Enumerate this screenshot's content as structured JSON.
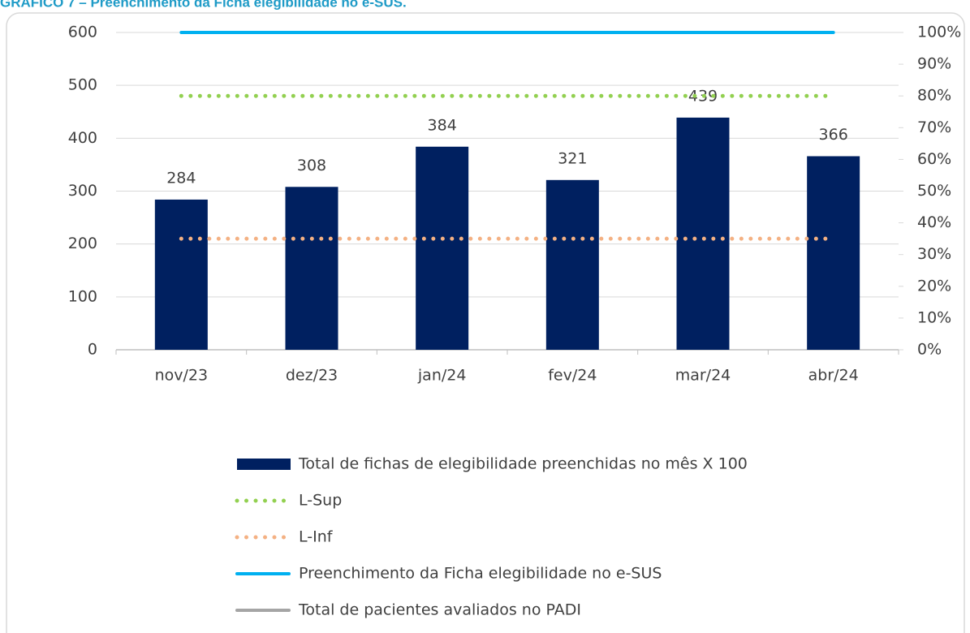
{
  "chart_data": {
    "type": "bar",
    "title": "GRÁFICO 7 – Preenchimento da Ficha elegibilidade no e-SUS.",
    "categories": [
      "nov/23",
      "dez/23",
      "jan/24",
      "fev/24",
      "mar/24",
      "abr/24"
    ],
    "series": [
      {
        "name": "Total de fichas de elegibilidade preenchidas no mês X 100",
        "type": "bar",
        "color": "#002060",
        "values": [
          284,
          308,
          384,
          321,
          439,
          366
        ]
      },
      {
        "name": "L-Sup",
        "type": "line",
        "style": "dotted",
        "color": "#92d050",
        "axis": "y2",
        "values": [
          80,
          80,
          80,
          80,
          80,
          80
        ]
      },
      {
        "name": "L-Inf",
        "type": "line",
        "style": "dotted",
        "color": "#f4b183",
        "axis": "y2",
        "values": [
          35,
          35,
          35,
          35,
          35,
          35
        ]
      },
      {
        "name": "Preenchimento da Ficha elegibilidade no e-SUS",
        "type": "line",
        "style": "solid",
        "color": "#00b0f0",
        "axis": "y2",
        "values": [
          100,
          100,
          100,
          100,
          100,
          100
        ]
      },
      {
        "name": "Total de pacientes avaliados no PADI",
        "type": "line",
        "style": "solid",
        "color": "#a5a5a5",
        "axis": "y2",
        "values": [
          null,
          null,
          null,
          null,
          null,
          null
        ]
      }
    ],
    "ylim": [
      0,
      600
    ],
    "yticks": [
      0,
      100,
      200,
      300,
      400,
      500,
      600
    ],
    "y2lim": [
      0,
      100
    ],
    "y2ticks": [
      {
        "value": 0,
        "label": "0%"
      },
      {
        "value": 10,
        "label": "10%"
      },
      {
        "value": 20,
        "label": "20%"
      },
      {
        "value": 30,
        "label": "30%"
      },
      {
        "value": 40,
        "label": "40%"
      },
      {
        "value": 50,
        "label": "50%"
      },
      {
        "value": 60,
        "label": "60%"
      },
      {
        "value": 70,
        "label": "70%"
      },
      {
        "value": 80,
        "label": "80%"
      },
      {
        "value": 90,
        "label": "90%"
      },
      {
        "value": 100,
        "label": "100%"
      }
    ],
    "grid": true,
    "legend": "bottom"
  }
}
